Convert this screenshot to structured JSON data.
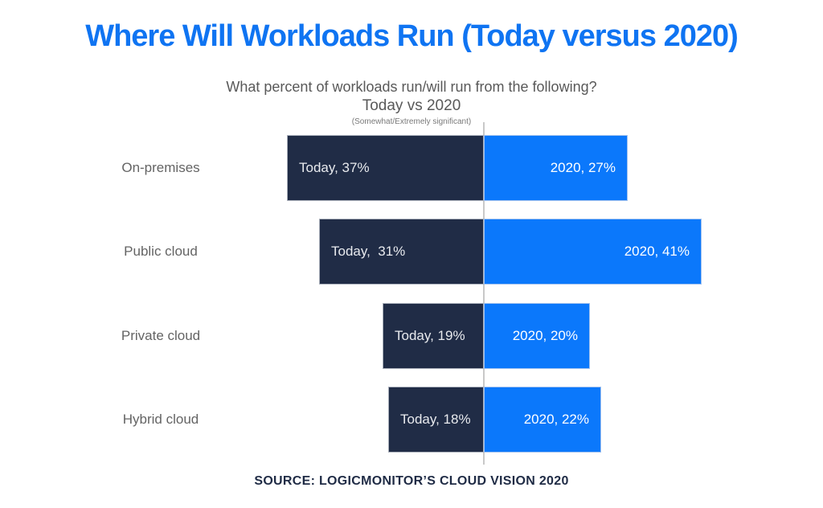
{
  "title": {
    "text": "Where Will Workloads Run (Today versus 2020)"
  },
  "subtitle": {
    "line1": "What percent of workloads run/will run from the following?",
    "line2": "Today vs 2020",
    "note": "(Somewhat/Extremely significant)"
  },
  "source": {
    "text": "SOURCE: LOGICMONITOR’S CLOUD VISION 2020"
  },
  "colors": {
    "title_blue": "#0F74F2",
    "today_bar": "#202C46",
    "bar_2020": "#0B78FB",
    "axis_line": "#C9C9C9",
    "category_label": "#646464",
    "source_navy": "#1F2B45"
  },
  "chart_data": {
    "type": "bar",
    "variant": "diverging-horizontal",
    "title": "What percent of workloads run/will run from the following? Today vs 2020",
    "categories": [
      "On-premises",
      "Public cloud",
      "Private cloud",
      "Hybrid cloud"
    ],
    "series": [
      {
        "name": "Today",
        "color": "#202C46",
        "direction": "left",
        "values": [
          37,
          31,
          19,
          18
        ],
        "labels": [
          "Today, 37%",
          "Today,  31%",
          "Today, 19%",
          "Today, 18%"
        ]
      },
      {
        "name": "2020",
        "color": "#0B78FB",
        "direction": "right",
        "values": [
          27,
          41,
          20,
          22
        ],
        "labels": [
          "2020, 27%",
          "2020, 41%",
          "2020, 20%",
          "2020, 22%"
        ]
      }
    ],
    "layout_hints": {
      "value_labels": "inside-bars",
      "legend": "none",
      "center_axis": true,
      "gridlines": false,
      "unit": "percent"
    }
  }
}
